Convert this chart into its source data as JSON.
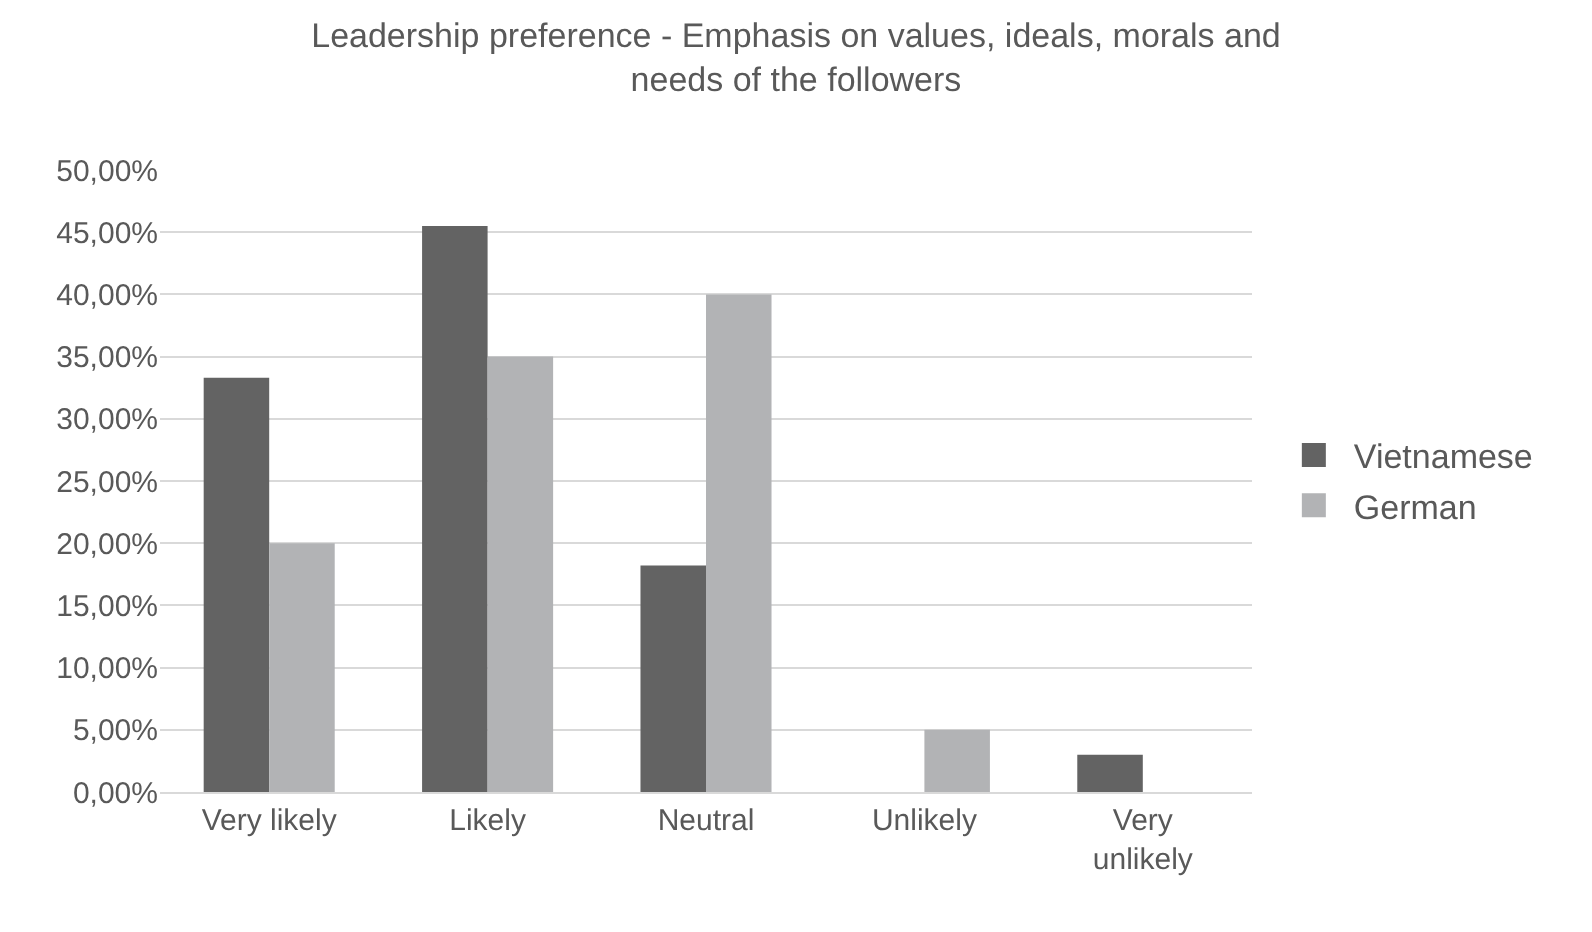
{
  "chart_data": {
    "type": "bar",
    "title": "Leadership preference - Emphasis on values, ideals, morals and needs of the followers",
    "categories": [
      "Very likely",
      "Likely",
      "Neutral",
      "Unlikely",
      "Very unlikely"
    ],
    "series": [
      {
        "name": "Vietnamese",
        "color": "#636363",
        "values": [
          33.3,
          45.5,
          18.2,
          0,
          3.0
        ]
      },
      {
        "name": "German",
        "color": "#b2b3b5",
        "values": [
          20,
          35,
          40,
          5,
          0
        ]
      }
    ],
    "ylim": [
      0,
      50
    ],
    "yticks": [
      {
        "value": 0,
        "label": "0,00%"
      },
      {
        "value": 5,
        "label": "5,00%"
      },
      {
        "value": 10,
        "label": "10,00%"
      },
      {
        "value": 15,
        "label": "15,00%"
      },
      {
        "value": 20,
        "label": "20,00%"
      },
      {
        "value": 25,
        "label": "25,00%"
      },
      {
        "value": 30,
        "label": "30,00%"
      },
      {
        "value": 35,
        "label": "35,00%"
      },
      {
        "value": 40,
        "label": "40,00%"
      },
      {
        "value": 45,
        "label": "45,00%"
      },
      {
        "value": 50,
        "label": "50,00%"
      }
    ],
    "grid": "y",
    "legend": "right"
  }
}
